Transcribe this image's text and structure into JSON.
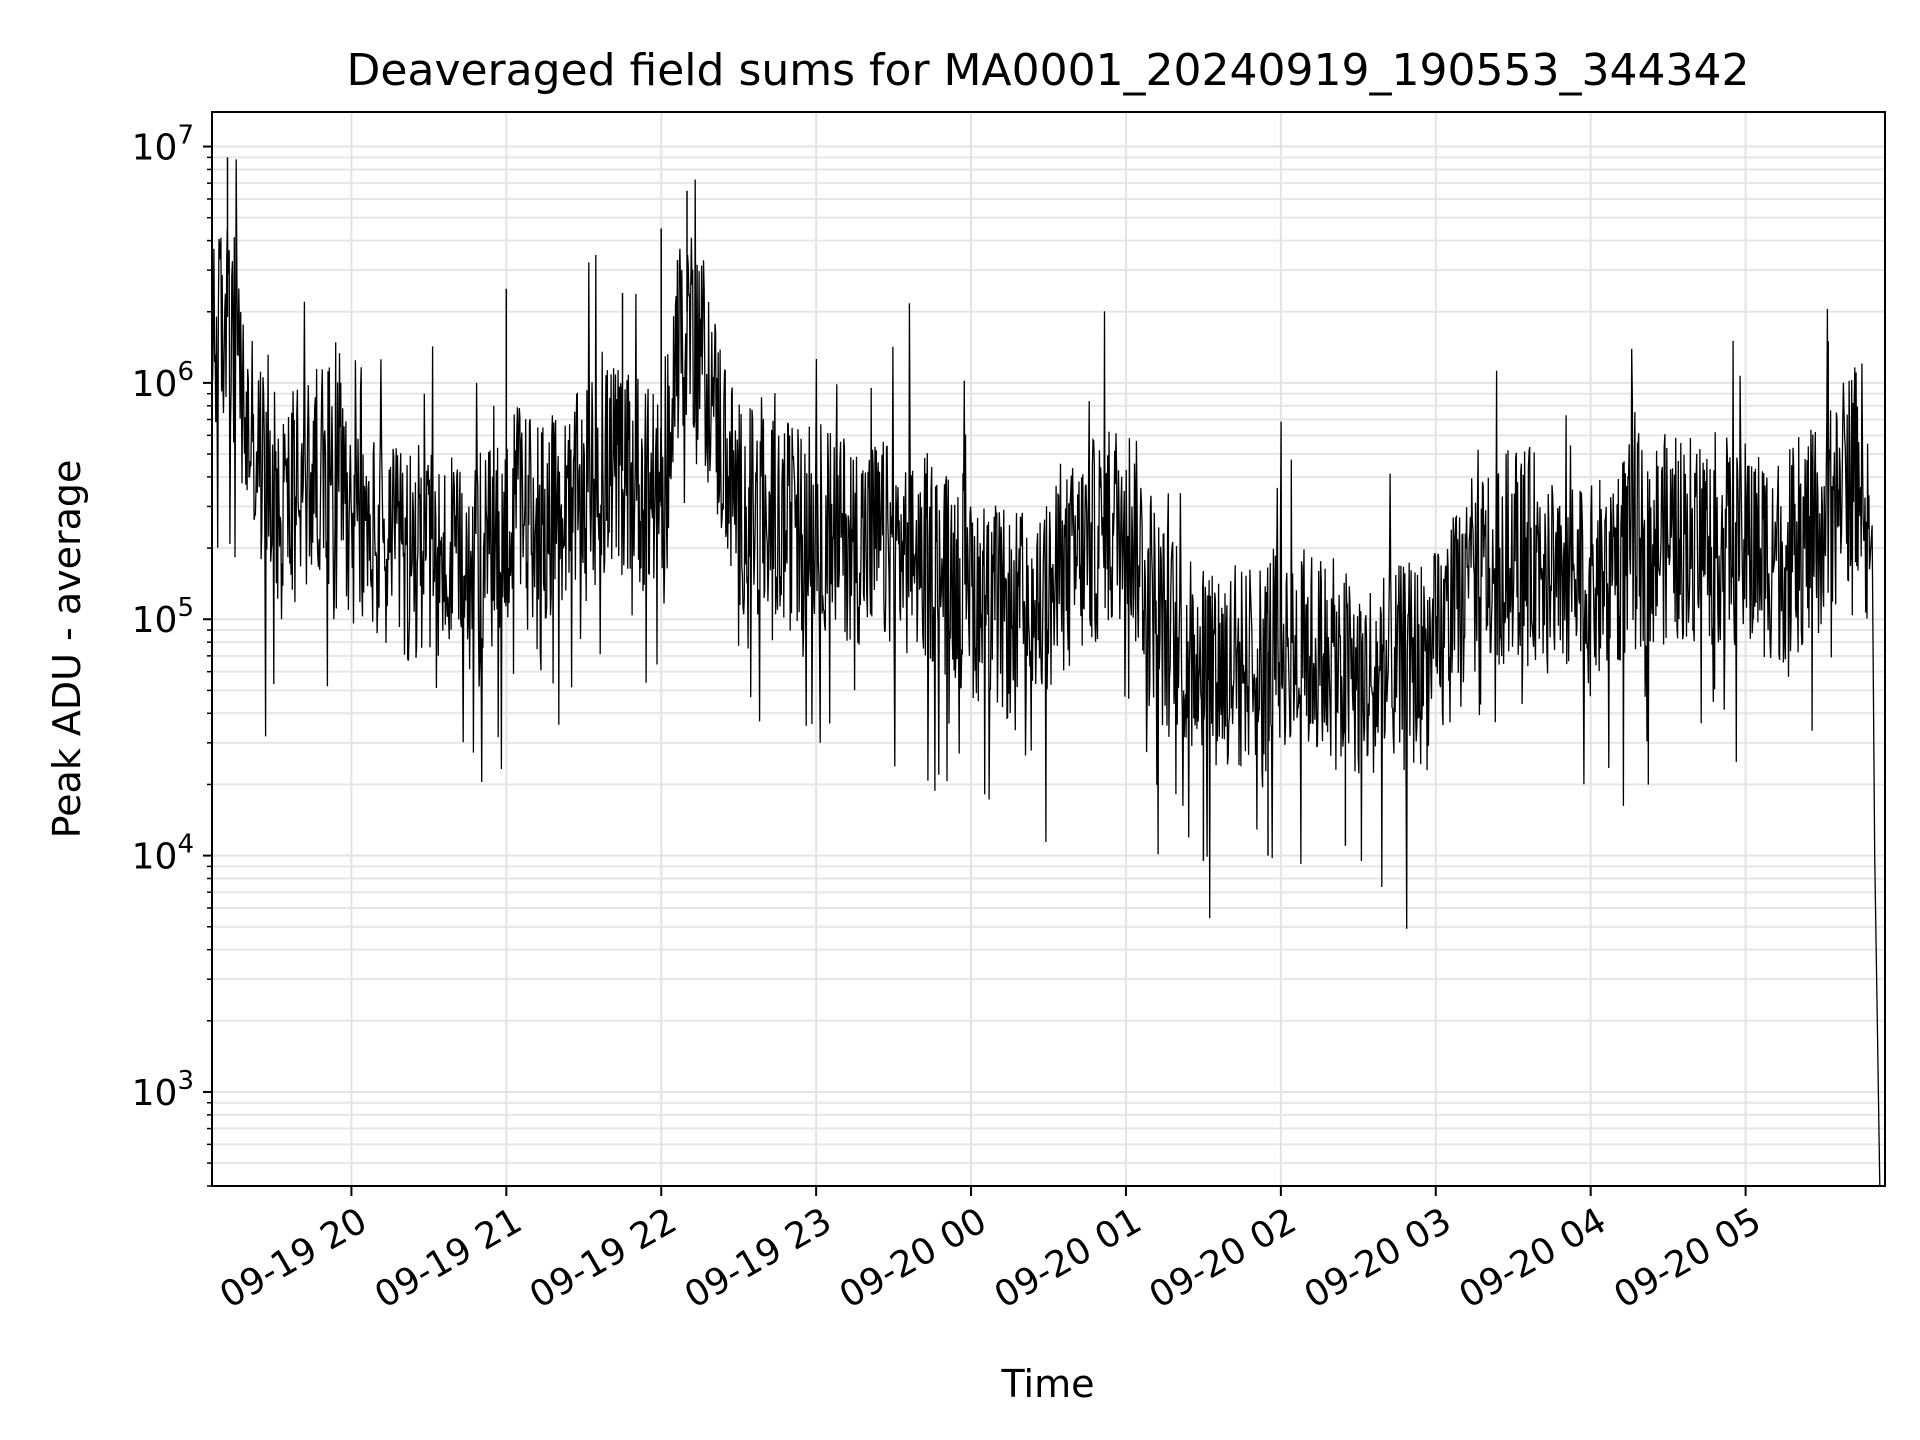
{
  "chart_data": {
    "type": "line",
    "title": "Deaveraged field sums for MA0001_20240919_190553_344342",
    "xlabel": "Time",
    "ylabel": "Peak ADU - average",
    "yscale": "log",
    "ylim": [
      400,
      14000000
    ],
    "xlim": [
      "2024-09-19 19:06",
      "2024-09-20 05:54"
    ],
    "grid": true,
    "x_ticks": [
      "09-19 20",
      "09-19 21",
      "09-19 22",
      "09-19 23",
      "09-20 00",
      "09-20 01",
      "09-20 02",
      "09-20 03",
      "09-20 04",
      "09-20 05"
    ],
    "y_ticks": [
      {
        "base": "10",
        "exp": "3",
        "value": 1000
      },
      {
        "base": "10",
        "exp": "4",
        "value": 10000
      },
      {
        "base": "10",
        "exp": "5",
        "value": 100000
      },
      {
        "base": "10",
        "exp": "6",
        "value": 1000000
      },
      {
        "base": "10",
        "exp": "7",
        "value": 10000000
      }
    ],
    "series": [
      {
        "color": "#000000",
        "x": [
          "2024-09-19 19:06",
          "2024-09-19 19:09",
          "2024-09-19 19:12",
          "2024-09-19 19:15",
          "2024-09-19 19:20",
          "2024-09-19 19:25",
          "2024-09-19 19:30",
          "2024-09-19 19:35",
          "2024-09-19 19:40",
          "2024-09-19 19:45",
          "2024-09-19 19:50",
          "2024-09-19 19:55",
          "2024-09-19 20:00",
          "2024-09-19 20:10",
          "2024-09-19 20:20",
          "2024-09-19 20:30",
          "2024-09-19 20:40",
          "2024-09-19 20:50",
          "2024-09-19 21:00",
          "2024-09-19 21:10",
          "2024-09-19 21:20",
          "2024-09-19 21:30",
          "2024-09-19 21:40",
          "2024-09-19 21:50",
          "2024-09-19 22:00",
          "2024-09-19 22:05",
          "2024-09-19 22:10",
          "2024-09-19 22:15",
          "2024-09-19 22:20",
          "2024-09-19 22:30",
          "2024-09-19 22:45",
          "2024-09-19 23:00",
          "2024-09-19 23:15",
          "2024-09-19 23:30",
          "2024-09-19 23:45",
          "2024-09-20 00:00",
          "2024-09-20 00:15",
          "2024-09-20 00:30",
          "2024-09-20 00:45",
          "2024-09-20 01:00",
          "2024-09-20 01:15",
          "2024-09-20 01:30",
          "2024-09-20 01:45",
          "2024-09-20 02:00",
          "2024-09-20 02:15",
          "2024-09-20 02:30",
          "2024-09-20 02:45",
          "2024-09-20 03:00",
          "2024-09-20 03:15",
          "2024-09-20 03:30",
          "2024-09-20 03:45",
          "2024-09-20 04:00",
          "2024-09-20 04:15",
          "2024-09-20 04:30",
          "2024-09-20 04:45",
          "2024-09-20 05:00",
          "2024-09-20 05:15",
          "2024-09-20 05:30",
          "2024-09-20 05:40",
          "2024-09-20 05:45",
          "2024-09-20 05:48",
          "2024-09-20 05:49",
          "2024-09-20 05:50",
          "2024-09-20 05:51",
          "2024-09-20 05:52"
        ],
        "values": [
          1300000,
          1600000,
          1900000,
          1200000,
          600000,
          450000,
          350000,
          300000,
          350000,
          400000,
          500000,
          600000,
          250000,
          220000,
          180000,
          200000,
          150000,
          180000,
          250000,
          300000,
          250000,
          350000,
          450000,
          400000,
          300000,
          1200000,
          2000000,
          1500000,
          800000,
          300000,
          250000,
          250000,
          220000,
          200000,
          180000,
          130000,
          100000,
          120000,
          200000,
          280000,
          90000,
          70000,
          60000,
          80000,
          70000,
          55000,
          60000,
          70000,
          150000,
          200000,
          180000,
          130000,
          200000,
          220000,
          230000,
          200000,
          180000,
          250000,
          400000,
          450000,
          300000,
          250000,
          10000,
          2000,
          300
        ]
      }
    ]
  }
}
